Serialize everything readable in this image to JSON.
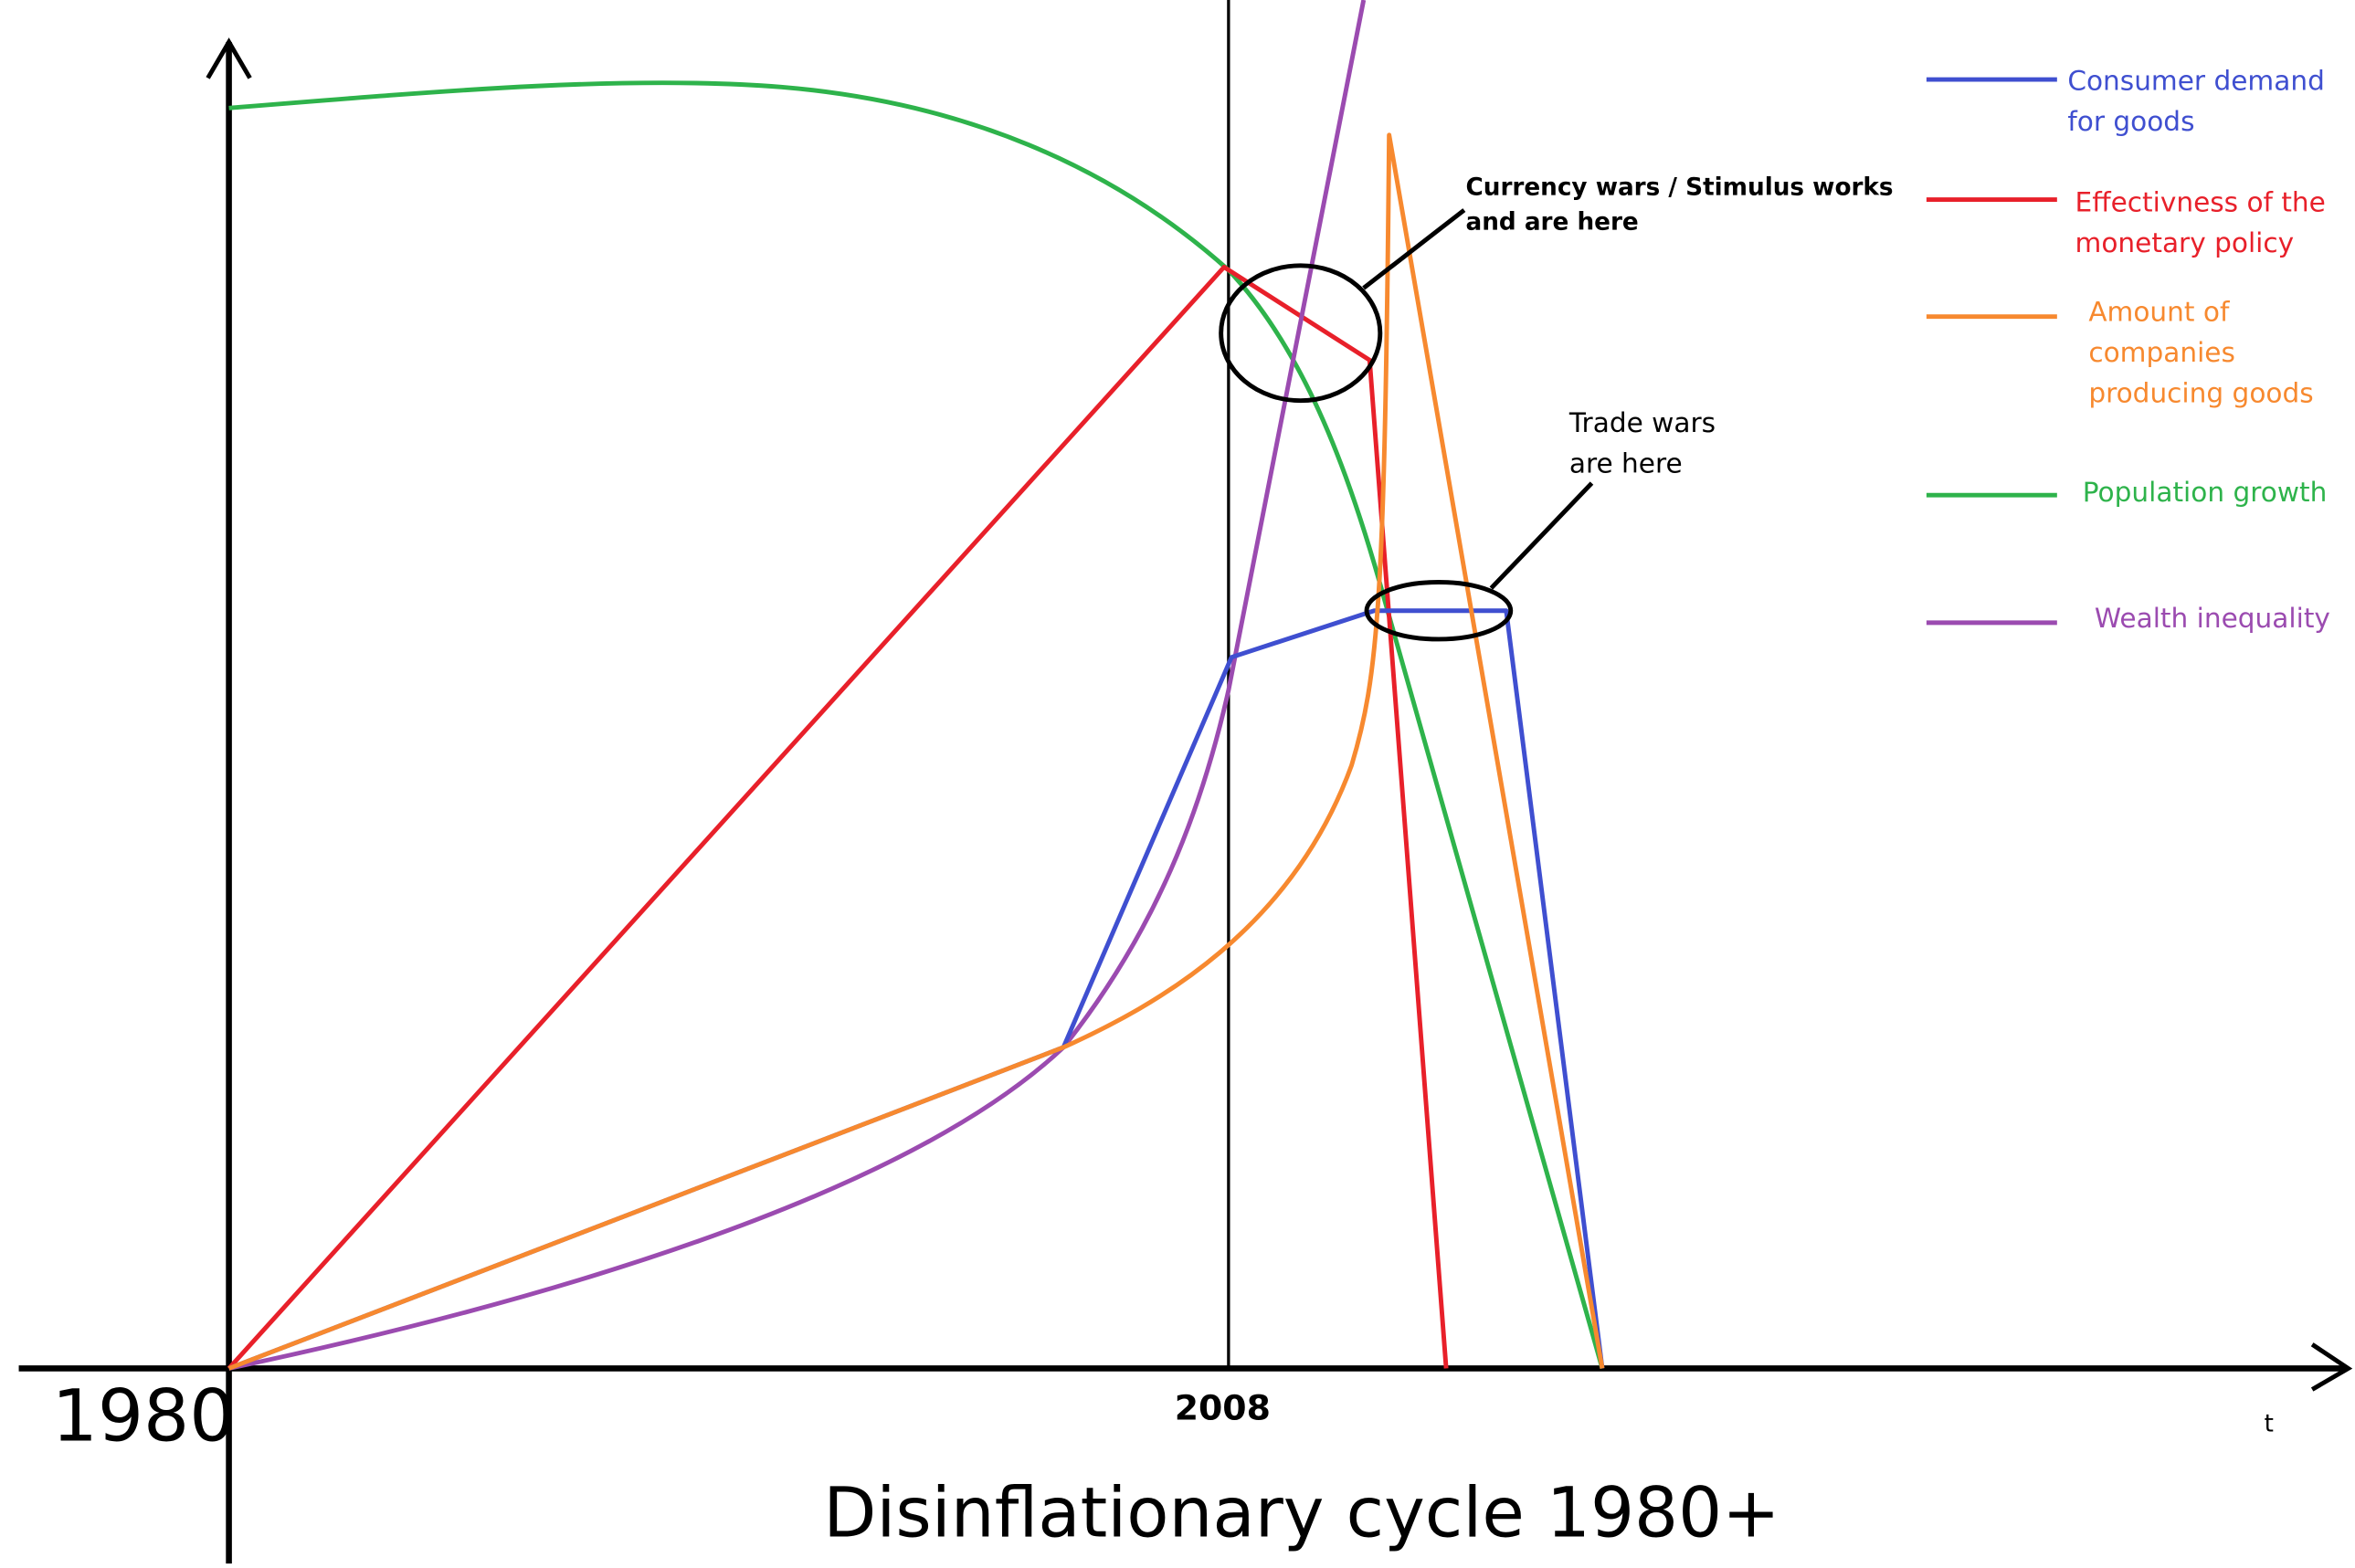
{
  "title": "Disinflationary cycle 1980+",
  "axis": {
    "origin_label": "1980",
    "marker_label": "2008",
    "x_label": "t"
  },
  "annotations": [
    {
      "lines": [
        "Currency wars / Stimulus works",
        "and are here"
      ]
    },
    {
      "lines": [
        "Trade wars",
        "are here"
      ]
    }
  ],
  "legend": [
    {
      "lines": [
        "Consumer demand",
        "for goods"
      ]
    },
    {
      "lines": [
        "Effectivness of the",
        "monetary policy"
      ]
    },
    {
      "lines": [
        "Amount of",
        "companies",
        "producing goods"
      ]
    },
    {
      "lines": [
        "Population growth"
      ]
    },
    {
      "lines": [
        "Wealth inequality"
      ]
    }
  ]
}
